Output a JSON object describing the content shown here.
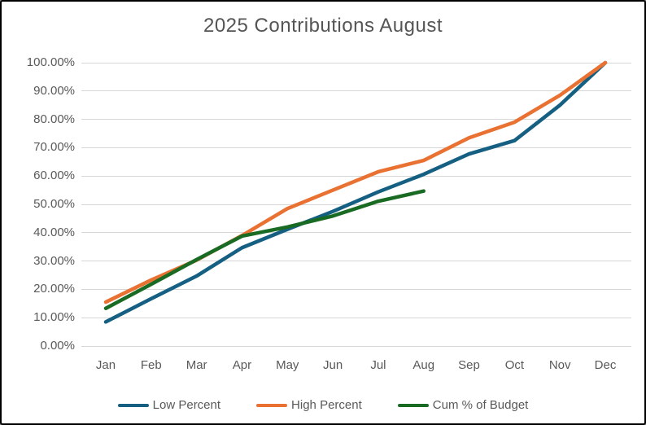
{
  "window": {
    "background": "#ffffff",
    "border_color": "#000000"
  },
  "chart_data": {
    "type": "line",
    "title": "2025 Contributions August",
    "categories": [
      "Jan",
      "Feb",
      "Mar",
      "Apr",
      "May",
      "Jun",
      "Jul",
      "Aug",
      "Sep",
      "Oct",
      "Nov",
      "Dec"
    ],
    "series": [
      {
        "name": "Low Percent",
        "color": "#156082",
        "values": [
          8.5,
          16.7,
          24.7,
          34.7,
          41.2,
          47.5,
          54.4,
          60.6,
          67.8,
          72.5,
          85.0,
          100.0
        ]
      },
      {
        "name": "High Percent",
        "color": "#E97132",
        "values": [
          15.5,
          23.3,
          30.3,
          39.0,
          48.5,
          55.0,
          61.5,
          65.5,
          73.5,
          79.0,
          88.5,
          100.0
        ]
      },
      {
        "name": "Cum % of Budget",
        "color": "#196B24",
        "values": [
          13.3,
          21.8,
          30.5,
          38.8,
          42.0,
          45.9,
          51.1,
          54.7
        ]
      }
    ],
    "y_ticks": [
      "100.00%",
      "90.00%",
      "80.00%",
      "70.00%",
      "60.00%",
      "50.00%",
      "40.00%",
      "30.00%",
      "20.00%",
      "10.00%",
      "0.00%"
    ],
    "ylim": [
      0,
      100
    ],
    "xlabel": "",
    "ylabel": "",
    "grid": true,
    "gridline_color": "#d6d6d6",
    "text_color": "#595959",
    "legend_position": "bottom"
  }
}
